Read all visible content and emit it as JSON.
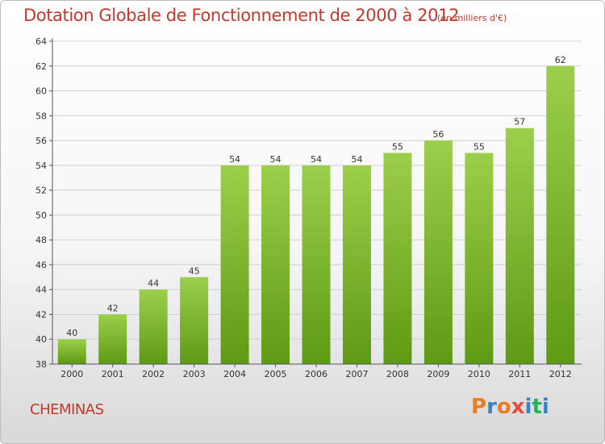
{
  "header": {
    "title": "Dotation Globale de Fonctionnement de 2000 à 2012",
    "subtitle": "(en milliers d'€)"
  },
  "footer": {
    "commune": "CHEMINAS",
    "logo_text": "Proxiti",
    "logo_colors": [
      "#e67e22",
      "#3b82c4",
      "#e67e22",
      "#e74c3c",
      "#3b82c4",
      "#27ae60",
      "#3b82c4"
    ]
  },
  "colors": {
    "bar_top": "#9ccf4a",
    "bar_bottom": "#5e9a14",
    "title": "#c0392b"
  },
  "chart_data": {
    "type": "bar",
    "categories": [
      "2000",
      "2001",
      "2002",
      "2003",
      "2004",
      "2005",
      "2006",
      "2007",
      "2008",
      "2009",
      "2010",
      "2011",
      "2012"
    ],
    "values": [
      40,
      42,
      44,
      45,
      54,
      54,
      54,
      54,
      55,
      56,
      55,
      57,
      62
    ],
    "ylim": [
      38,
      64
    ],
    "yticks": [
      38,
      40,
      42,
      44,
      46,
      48,
      50,
      52,
      54,
      56,
      58,
      60,
      62,
      64
    ],
    "grid": true,
    "data_labels": true
  }
}
